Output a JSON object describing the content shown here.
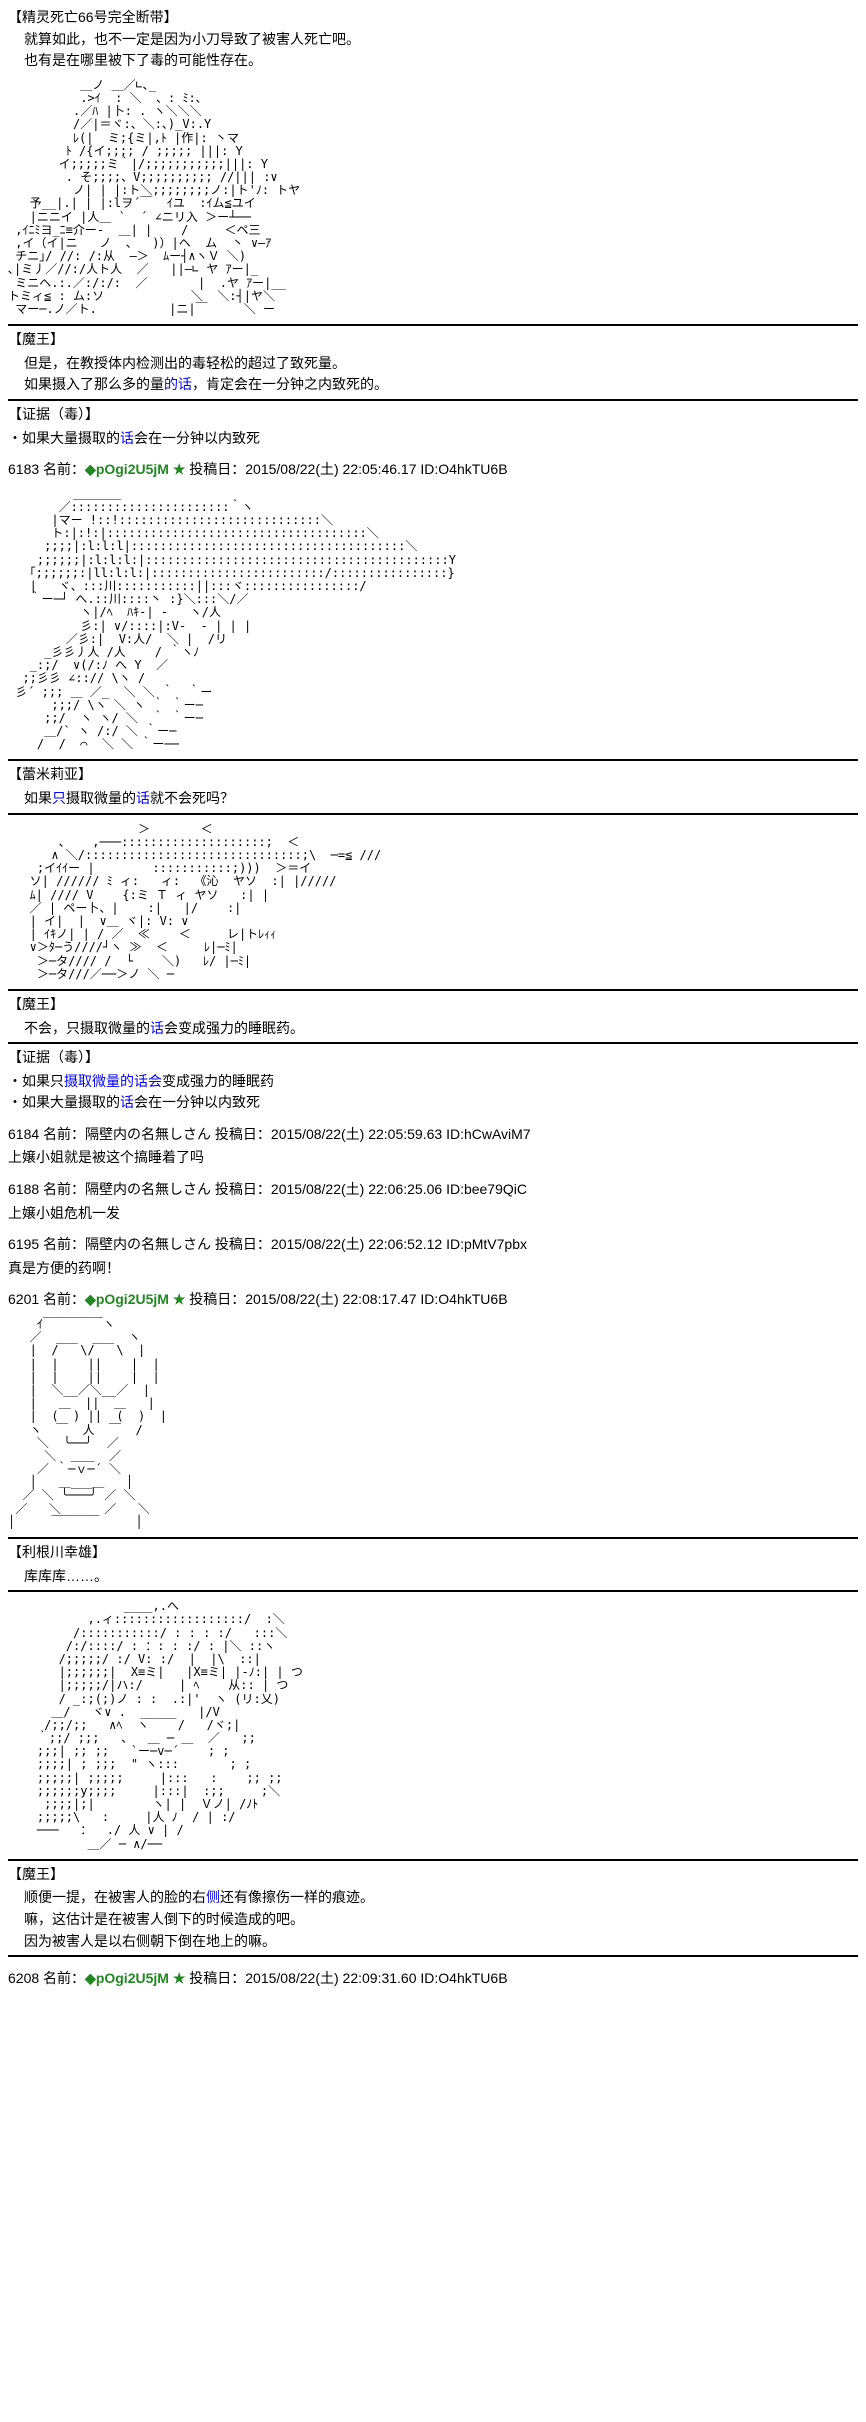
{
  "section1": {
    "label": "【精灵死亡66号完全断带】",
    "line1": "就算如此，也不一定是因为小刀导致了被害人死亡吧。",
    "line2": "也有是在哪里被下了毒的可能性存在。"
  },
  "section2": {
    "label": "【魔王】",
    "line1": "但是，在教授体内检测出的毒轻松的超过了致死量。",
    "line2": "如果摄入了那么多的量",
    "line2b": "的话",
    "line2c": "，肯定会在一分钟之内致死的。"
  },
  "section3": {
    "label": "【证据（毒）】",
    "item1": "・如果大量摄取的",
    "item1b": "话",
    "item1c": "会在一分钟以内致死"
  },
  "post6183": {
    "num": "6183",
    "name": "名前：",
    "trip": "◆pOgi2U5jM ★",
    "date": " 投稿日：2015/08/22(土) 22:05:46.17 ID:O4hkTU6B"
  },
  "section4": {
    "label": "【蕾米莉亚】",
    "line1": "如果",
    "line1b": "只",
    "line1c": "摄取微量的",
    "line1d": "话",
    "line1e": "就不会死吗？"
  },
  "section5": {
    "label": "【魔王】",
    "line1": "不会，只摄取微量的",
    "line1b": "话",
    "line1c": "会变成强力的睡眠药。"
  },
  "section6": {
    "label": "【证据（毒）】",
    "item1": "・如果只",
    "item1b": "摄取微量的话会",
    "item1c": "变成强力的睡眠药",
    "item2": "・如果大量摄取的",
    "item2b": "话",
    "item2c": "会在一分钟以内致死"
  },
  "post6184": {
    "num": "6184",
    "name": " 名前：隔壁内の名無しさん 投稿日：2015/08/22(土) 22:05:59.63 ID:hCwAviM7",
    "comment": "上嬢小姐就是被这个搞睡着了吗"
  },
  "post6188": {
    "num": "6188",
    "name": " 名前：隔壁内の名無しさん 投稿日：2015/08/22(土) 22:06:25.06 ID:bee79QiC",
    "comment": "上嬢小姐危机一发"
  },
  "post6195": {
    "num": "6195",
    "name": " 名前：隔壁内の名無しさん 投稿日：2015/08/22(土) 22:06:52.12 ID:pMtV7pbx",
    "comment": "真是方便的药啊！"
  },
  "post6201": {
    "num": "6201",
    "name": " 名前：",
    "trip": "◆pOgi2U5jM ★",
    "date": " 投稿日：2015/08/22(土) 22:08:17.47 ID:O4hkTU6B"
  },
  "section7": {
    "label": "【利根川幸雄】",
    "line1": "库库库……。"
  },
  "section8": {
    "label": "【魔王】",
    "line1": "顺便一提，在被害人的脸的右",
    "line1b": "侧",
    "line1c": "还有像擦伤一样的痕迹。",
    "line2": "嘛，这估计是在被害人倒下的时候造成的吧。",
    "line3": "因为被害人是以右侧朝下倒在地上的嘛。"
  },
  "post6208": {
    "num": "6208",
    "name": " 名前：",
    "trip": "◆pOgi2U5jM ★",
    "date": " 投稿日：2015/08/22(土) 22:09:31.60 ID:O4hkTU6B"
  },
  "ascii": {
    "art1": "          ＿ノ ＿／∟､_\n          .>ｲ  : ＼  、: ﾐ:､\n         .／ﾊ |卜: . ヽ＼＼＼\n         /／|＝ヾ:、＼:、)_V:.Y\n         ﾚ(|  ミ;{ミ|,ﾄ |作|: 丶マ\n        ﾄ /{イ;;;; / ;;;;; |||: Y\n       イ;;;;;ミ｀|/;;;;;;;;;;;|||: Y\n        . そ;;;;、V;;;;;;;;;; //||| :∨\n         ノ| | |:ト＼;;;;;;;;ノ:|ト'ﾉ: トヤ\n   予__|.| | |:lヲ´￣  ｲユ  :ｲム≦ユイ\n   |ニニイ |人＿ `  ´ ∠ニリ入 ＞ー┴──\n ,ｲﾆﾐヨ_ﾆ≡介ー-  ＿| |    /     ＜ペ三\n ,イ（イ|ニ   ノ  、  )）|ヘ  ム  丶 ∨―ｱ\n チニ｣/ //: /:从  ―＞  ﾑー┤∧ヽＶ ＼)\n､|ミ丿／//:/人ト人  ／   ||―∟ ヤ ｱー|_\n ミニヘ.:.／:/:/:  ／       |  .ヤ ｱー|__\nトミィ≦ : ム:ソ            ＼  ＼:┤|ヤ＼\n マー─.ノ／ト.          |ニ|￣     ＼ ー",
    "art2": "         ＿＿＿＿\n       ／::::::::::::::::::::::｀ヽ\n      |マー !::!::::::::::::::::::::::::::::＼\n      ト:|:!:|::::::::::::::::::::::::::::::::::::＼\n     ;;;;|:l:l:l|::::::::::::::::::::::::::::::::::::::＼\n    ;;;;;;|:l:l:l:|::::::::::::::::::::::::::::::::::::::::::Y\n   ｢;;;;;;:|ll:l:l:|::::::::::::::::::::::::/::::::::::::::::}\n   |   ヾ、:::川:::::::::::||:::ヾ::::::::::::::::/\n   ｀ー─┘ へ.::川::::丶 :}＼:::＼/／\n          ヽ|/ﾍ  ﾊｷ-| -   ヽ/人\n          彡:| ∨/::::|:V-  - | | |\n        ／彡:|  V:人/  ＼ |  /リ\n     _彡彡丿人 /人    / ｀ヽﾉ\n   _:;/  ∨(/:ﾉ へ Y  ／\n  ;;彡彡 ∠::// \\ヽ /\n 彡´ ;;; ＿ ／_  ＼ ＼ ｀  ｀ー\n      ;;;/ \\ヽ ＼ ヽ ｀ ｀ー─\n     ;;/  ヽ ヽ/ ＼  ｀ ｀ー─\n     ＿/` ヽ /:/ ＼ ｀ー─\n    /  /  ⌒  ＼ ＼ ｀ー──",
    "art3": "                  ＞       ＜\n       、   ,───::::::::::::::::::::;  ＜\n      ∧ ＼/::::::::::::::::::::::::::::::;\\  ─=≦ ///\n    ;イｲｲー |        :::::::::::;)))  ＞＝イ\n   ソ| ////// ﾐ ィ:   ィ:  《沁  ヤソ  :| |/////\n   ﾑ| //// V    {:ミ Ｔ ィ ヤソ   :| |\n   ／ | ペー卜、|    :|   |/    :|\n   | イ|  |  ∨＿ ヾ|: V: ∨\n   | ｲｷノ| | / ／  ≪    ＜     レ|トﾚｨｨ\n   ∨＞ﾀ─う////┘ヽ ≫  ＜     ﾚ|─ﾐ|\n    ＞─タ//// /  └    ＼)   ﾚ/ |─ﾐ|\n    ＞─タ///／──＞ノ ＼ ─",
    "art4": "    ｲ￣￣￣￣￣ヽ\n   ／  ___  ___  ヽ\n   |  /   \\/   \\  |\n   |  |    ||    |  |\n   |  |    ||    |  |\n   |  ＼__／＼__／  |\n   |   ＿  ||  ＿   |\n   |  (  ) ||  (  )  |\n   ヽ  ￣  人  ￣  /\n    ＼  ╰──╯  ／\n     ＼  ＿＿  ／\n    ／ ｀─ｖ─´ ＼\n   │   ＿___＿   │\n  ／ ＼ ╰───╯ ／ ＼\n ／   ＼      ／   ＼\n│     ￣￣￣￣     │",
    "art5": "                ____,.へ\n           ,.ィ::::::::::::::::::/  :＼\n         /:::::::::::/ : : : :/   :::＼\n        /:/::::/ : ：: : :/ : |＼ ::ヽ\n       /;;;;;/ :/ V: :/  |  |\\  ::|\n       |;;;;;;|  X≡ミ|   |X≡ミ| |-ﾉ:| | つ\n       |;;;;;/|ハ:/     | ﾍ    从:: | つ\n       / _:;(;)ノ : :  .:|'  ヽ (リ:乂)\n      ＿/   ヾ∨ .  _____   |/V\n     /;;/;;   ∧ﾍ  ヽ    /   /ヾ;|\n    ｀;;/ ;;;   、  ＿ ─ ＿  ／   ;;\n    ;;;| ;; ;;   `ー─v─´    ; ;\n    ;;;;| ; ;;;  \" ヽ:::       ; ;\n    ;;;;;| ;;;;;     |:::   :    ;; ;;\n    ;;;;;;y;;;;     |:::|  :;;     ;＼\n     ;;;;|;|        ヽ| |  Ｖノ| /ﾉﾄ\n    ;;;;;\\   :     |人 ﾉ  / | :/\n    ───   ：  ./ 人 ∨ | /\n           ＿／ ─ ∧/──"
  }
}
